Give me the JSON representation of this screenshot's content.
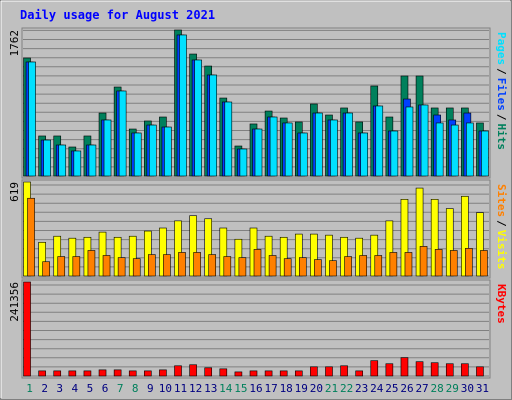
{
  "chart_data": {
    "type": "bar",
    "title": "Daily usage for August 2021",
    "categories": [
      "1",
      "2",
      "3",
      "4",
      "5",
      "6",
      "7",
      "8",
      "9",
      "10",
      "11",
      "12",
      "13",
      "14",
      "15",
      "16",
      "17",
      "18",
      "19",
      "20",
      "21",
      "22",
      "23",
      "24",
      "25",
      "26",
      "27",
      "28",
      "29",
      "30",
      "31"
    ],
    "weekend": [
      0,
      6,
      7,
      13,
      14,
      20,
      21,
      27,
      28
    ],
    "weekday_color": "#000080",
    "weekend_color": "#00805c",
    "separator": "/",
    "panels": [
      {
        "ylim": [
          0,
          1762
        ],
        "yticks": [
          1762
        ],
        "series": [
          {
            "name": "Hits",
            "color": "#00805c",
            "values": [
              1424,
              483,
              483,
              350,
              483,
              760,
              1074,
              567,
              664,
              712,
              1762,
              1472,
              1327,
              941,
              362,
              628,
              784,
              700,
              652,
              869,
              736,
              821,
              652,
              1086,
              712,
              1207,
              1207,
              821,
              821,
              821,
              640
            ]
          },
          {
            "name": "Files",
            "color": "#0040ff",
            "values": [
              1376,
              434,
              374,
              302,
              374,
              676,
              1026,
              519,
              615,
              591,
              1702,
              1400,
              1219,
              893,
              326,
              567,
              712,
              640,
              519,
              760,
              676,
              760,
              519,
              845,
              543,
              929,
              857,
              736,
              676,
              760,
              543
            ]
          },
          {
            "name": "Pages",
            "color": "#00e0ff",
            "values": [
              1376,
              434,
              374,
              302,
              374,
              676,
              1026,
              519,
              615,
              591,
              1702,
              1400,
              1219,
              893,
              326,
              567,
              712,
              640,
              519,
              760,
              676,
              760,
              519,
              845,
              543,
              833,
              857,
              640,
              615,
              640,
              543
            ]
          }
        ]
      },
      {
        "ylim": [
          0,
          619
        ],
        "yticks": [
          619
        ],
        "series": [
          {
            "name": "Visits",
            "color": "#ffff00",
            "values": [
              619,
              222,
              262,
              249,
              255,
              289,
              255,
              262,
              296,
              316,
              363,
              397,
              377,
              316,
              242,
              316,
              262,
              255,
              276,
              276,
              269,
              255,
              249,
              269,
              363,
              505,
              579,
              505,
              444,
              525,
              417
            ]
          },
          {
            "name": "Sites",
            "color": "#ff8000",
            "values": [
              512,
              94,
              128,
              128,
              168,
              135,
              121,
              114,
              141,
              141,
              155,
              155,
              141,
              128,
              121,
              175,
              135,
              114,
              121,
              108,
              101,
              128,
              135,
              135,
              155,
              155,
              195,
              175,
              168,
              182,
              168
            ]
          }
        ]
      },
      {
        "ylim": [
          0,
          241356
        ],
        "yticks": [
          241356
        ],
        "series": [
          {
            "name": "KBytes",
            "color": "#ff0000",
            "values": [
              241356,
              13117,
              13117,
              13117,
              13117,
              15740,
              15740,
              13117,
              13117,
              15740,
              26234,
              28858,
              20987,
              18364,
              10494,
              13117,
              13117,
              13117,
              13117,
              23611,
              23611,
              26234,
              13117,
              39352,
              31481,
              47222,
              36728,
              34105,
              31481,
              31481,
              23611
            ]
          }
        ]
      }
    ]
  }
}
